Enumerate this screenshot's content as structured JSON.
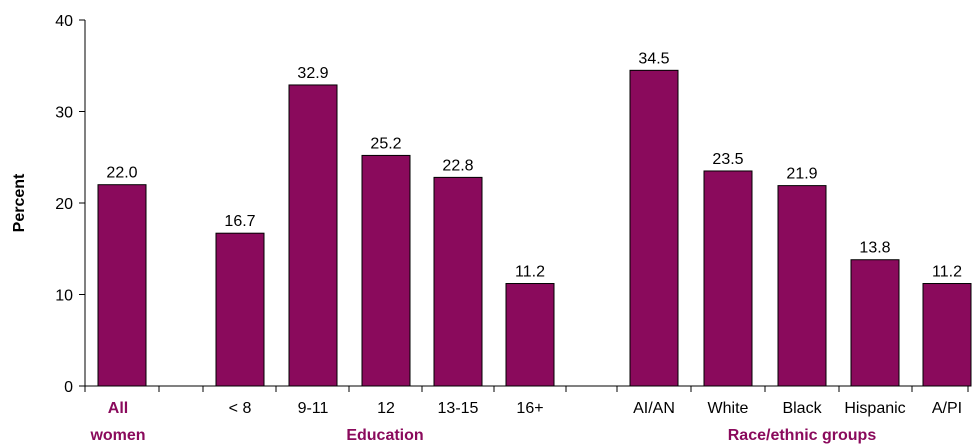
{
  "chart_data": {
    "type": "bar",
    "title": "",
    "xlabel": "",
    "ylabel": "Percent",
    "ylim": [
      0,
      40
    ],
    "yticks": [
      0,
      10,
      20,
      30,
      40
    ],
    "grid": false,
    "categories": [
      "All women",
      "< 8",
      "9-11",
      "12",
      "13-15",
      "16+",
      "AI/AN",
      "White",
      "Black",
      "Hispanic",
      "A/PI"
    ],
    "value_labels": [
      "22.0",
      "16.7",
      "32.9",
      "25.2",
      "22.8",
      "11.2",
      "34.5",
      "23.5",
      "21.9",
      "13.8",
      "11.2"
    ],
    "values": [
      22.0,
      16.7,
      32.9,
      25.2,
      22.8,
      11.2,
      34.5,
      23.5,
      21.9,
      13.8,
      11.2
    ],
    "groups": [
      {
        "label": "All women",
        "lines": [
          "All",
          "women"
        ],
        "members": [
          "All women"
        ]
      },
      {
        "label": "Education",
        "members": [
          "< 8",
          "9-11",
          "12",
          "13-15",
          "16+"
        ]
      },
      {
        "label": "Race/ethnic groups",
        "members": [
          "AI/AN",
          "White",
          "Black",
          "Hispanic",
          "A/PI"
        ]
      }
    ],
    "colors": {
      "bar": "#8a0a5c",
      "bar_stroke": "#000000",
      "group_label": "#8a0a5c",
      "axis": "#000000"
    }
  }
}
